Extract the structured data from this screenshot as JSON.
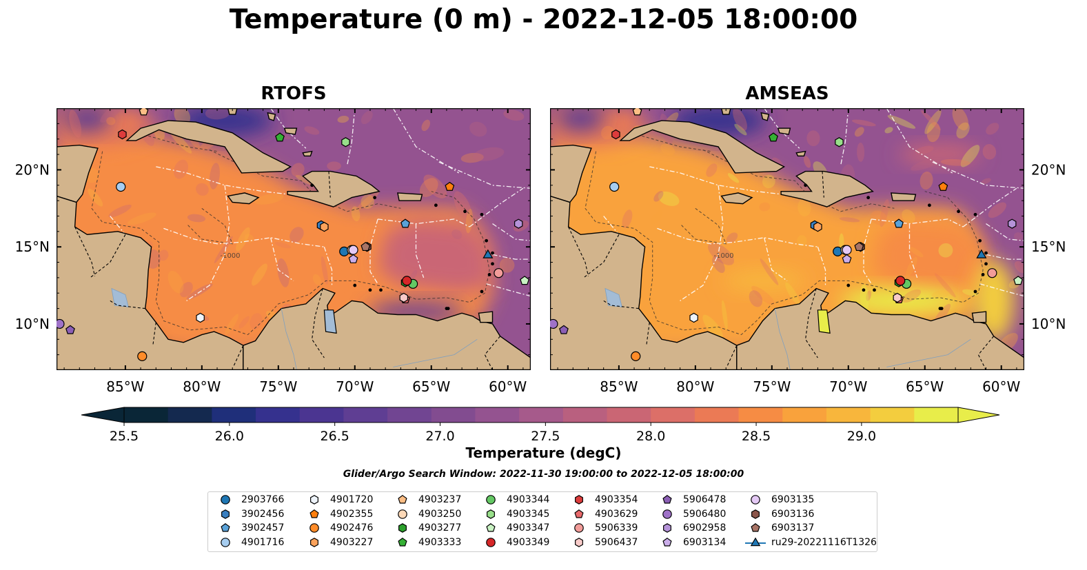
{
  "title": "Temperature (0 m) - 2022-12-05 18:00:00",
  "panels": [
    {
      "name": "RTOFS",
      "model": "rtofs"
    },
    {
      "name": "AMSEAS",
      "model": "amseas"
    }
  ],
  "lon_ticks": [
    "85°W",
    "80°W",
    "75°W",
    "70°W",
    "65°W",
    "60°W"
  ],
  "lon_values": [
    -85,
    -80,
    -75,
    -70,
    -65,
    -60
  ],
  "lat_ticks": [
    "20°N",
    "15°N",
    "10°N"
  ],
  "lat_values": [
    20,
    15,
    10
  ],
  "lon_range": [
    -89.5,
    -58.5
  ],
  "lat_range": [
    7,
    24
  ],
  "contour_label": "-1000",
  "colorbar": {
    "label": "Temperature (degC)",
    "min": 25.5,
    "max": 29.25,
    "step": 0.25,
    "tick_labels": [
      "25.5",
      "26.0",
      "26.5",
      "27.0",
      "27.5",
      "28.0",
      "28.5",
      "29.0"
    ],
    "tick_values": [
      25.5,
      26.0,
      26.5,
      27.0,
      27.5,
      28.0,
      28.5,
      29.0
    ],
    "colors": [
      "#0a2637",
      "#14294f",
      "#1f2f7a",
      "#35318e",
      "#4b3591",
      "#5f3e93",
      "#714592",
      "#824c90",
      "#945390",
      "#a65a8b",
      "#b9607f",
      "#ca6674",
      "#dc6f68",
      "#eb7a55",
      "#f68c44",
      "#f9a23c",
      "#f8b63c",
      "#f3cd3e",
      "#e8ed4a"
    ]
  },
  "search_window": "Glider/Argo Search Window: 2022-11-30 19:00:00 to 2022-12-05 18:00:00",
  "colors": {
    "land": "#d2b48c",
    "pacific_amseas": "#8fb3e0",
    "lakes": "#a3bcd6"
  },
  "legend": [
    {
      "id": "2903766",
      "shape": "circle",
      "color": "#1f77b4"
    },
    {
      "id": "3902456",
      "shape": "hexagon",
      "color": "#3a7fc0"
    },
    {
      "id": "3902457",
      "shape": "pentagon",
      "color": "#5aa2d8"
    },
    {
      "id": "4901716",
      "shape": "circle",
      "color": "#a6cdf0"
    },
    {
      "id": "4901720",
      "shape": "hexagon",
      "color": "#eef4fb"
    },
    {
      "id": "4902355",
      "shape": "pentagon",
      "color": "#ff7f0e"
    },
    {
      "id": "4902476",
      "shape": "circle",
      "color": "#ff8c29"
    },
    {
      "id": "4903227",
      "shape": "hexagon",
      "color": "#fca35c"
    },
    {
      "id": "4903237",
      "shape": "pentagon",
      "color": "#fdbe85"
    },
    {
      "id": "4903250",
      "shape": "circle",
      "color": "#fdd9b8"
    },
    {
      "id": "4903277",
      "shape": "hexagon",
      "color": "#2ca02c"
    },
    {
      "id": "4903333",
      "shape": "pentagon",
      "color": "#35b035"
    },
    {
      "id": "4903344",
      "shape": "circle",
      "color": "#64c864"
    },
    {
      "id": "4903345",
      "shape": "hexagon",
      "color": "#98df8a"
    },
    {
      "id": "4903347",
      "shape": "pentagon",
      "color": "#c9f2c3"
    },
    {
      "id": "4903349",
      "shape": "circle",
      "color": "#d62728"
    },
    {
      "id": "4903354",
      "shape": "hexagon",
      "color": "#dd3c3c"
    },
    {
      "id": "4903629",
      "shape": "pentagon",
      "color": "#e8696b"
    },
    {
      "id": "5906339",
      "shape": "circle",
      "color": "#f29c99"
    },
    {
      "id": "5906437",
      "shape": "hexagon",
      "color": "#f8cbc9"
    },
    {
      "id": "5906478",
      "shape": "pentagon",
      "color": "#8c5fb5"
    },
    {
      "id": "5906480",
      "shape": "circle",
      "color": "#9f72c8"
    },
    {
      "id": "6902958",
      "shape": "hexagon",
      "color": "#b593d9"
    },
    {
      "id": "6903134",
      "shape": "pentagon",
      "color": "#cbaeea"
    },
    {
      "id": "6903135",
      "shape": "circle",
      "color": "#e4c9f5"
    },
    {
      "id": "6903136",
      "shape": "hexagon",
      "color": "#8c564b"
    },
    {
      "id": "6903137",
      "shape": "pentagon",
      "color": "#a87466"
    },
    {
      "id": "ru29-20221116T1326",
      "shape": "triangle-line",
      "color": "#1f77b4"
    }
  ],
  "markers": [
    {
      "id": "2903766",
      "lon": -70.7,
      "lat": 14.7
    },
    {
      "id": "3902456",
      "lon": -72.2,
      "lat": 16.4
    },
    {
      "id": "3902457",
      "lon": -66.7,
      "lat": 16.5
    },
    {
      "id": "4901716",
      "lon": -85.3,
      "lat": 18.9
    },
    {
      "id": "4901720",
      "lon": -80.1,
      "lat": 10.4
    },
    {
      "id": "4902355",
      "lon": -63.8,
      "lat": 18.9
    },
    {
      "id": "4902476",
      "lon": -83.9,
      "lat": 7.9
    },
    {
      "id": "4903227",
      "lon": -72.0,
      "lat": 16.3
    },
    {
      "id": "4903237",
      "lon": -83.8,
      "lat": 23.8
    },
    {
      "id": "4903250",
      "lon": -70.2,
      "lat": 14.8
    },
    {
      "id": "4903277",
      "lon": -66.7,
      "lat": 12.7
    },
    {
      "id": "4903333",
      "lon": -74.9,
      "lat": 22.1
    },
    {
      "id": "4903344",
      "lon": -66.2,
      "lat": 12.6
    },
    {
      "id": "4903345",
      "lon": -70.6,
      "lat": 21.8
    },
    {
      "id": "4903347",
      "lon": -58.9,
      "lat": 12.8
    },
    {
      "id": "4903349",
      "lon": -66.6,
      "lat": 12.8
    },
    {
      "id": "4903354",
      "lon": -85.2,
      "lat": 22.3
    },
    {
      "id": "4903629",
      "lon": -66.7,
      "lat": 11.6
    },
    {
      "id": "5906339",
      "lon": -60.6,
      "lat": 13.3
    },
    {
      "id": "5906437",
      "lon": -66.8,
      "lat": 11.7
    },
    {
      "id": "5906478",
      "lon": -88.6,
      "lat": 9.6
    },
    {
      "id": "5906480",
      "lon": -89.3,
      "lat": 10.0
    },
    {
      "id": "6902958",
      "lon": -59.3,
      "lat": 16.5
    },
    {
      "id": "6903134",
      "lon": -70.1,
      "lat": 14.2
    },
    {
      "id": "6903135",
      "lon": -70.1,
      "lat": 14.8
    },
    {
      "id": "6903136",
      "lon": -69.2,
      "lat": 15.0
    },
    {
      "id": "6903137",
      "lon": -69.3,
      "lat": 15.0
    },
    {
      "id": "ru29-20221116T1326",
      "lon": -61.3,
      "lat": 14.5
    }
  ]
}
